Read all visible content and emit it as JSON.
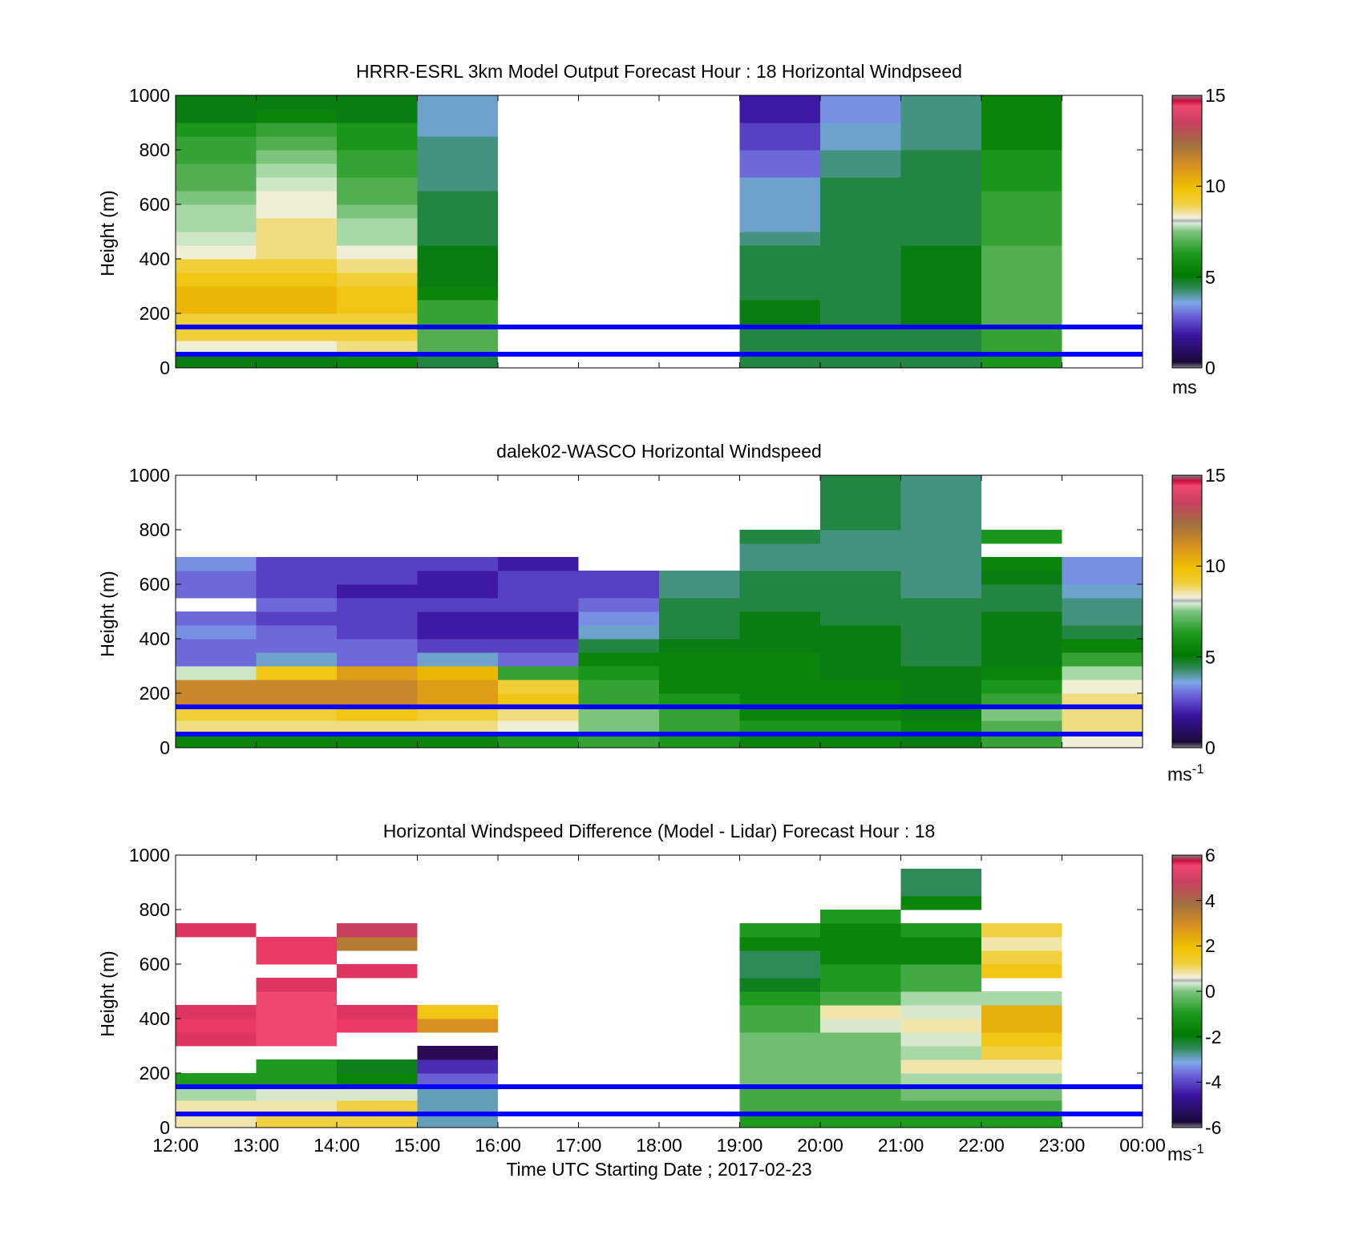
{
  "xaxis": {
    "ticks": [
      "12:00",
      "13:00",
      "14:00",
      "15:00",
      "16:00",
      "17:00",
      "18:00",
      "19:00",
      "20:00",
      "21:00",
      "22:00",
      "23:00",
      "00:00"
    ],
    "label": "Time UTC  Starting Date ; 2017-02-23",
    "start_hour": 12,
    "end_hour": 24
  },
  "panels": [
    {
      "title": "HRRR-ESRL 3km Model Output   Forecast Hour : 18 Horizontal Windpseed",
      "ylabel": "Height (m)",
      "yticks": [
        "0",
        "200",
        "400",
        "600",
        "800",
        "1000"
      ],
      "ylim": [
        0,
        1000
      ],
      "cbar": {
        "ticks": [
          "0",
          "5",
          "10",
          "15"
        ],
        "range": [
          0,
          15
        ],
        "unit": "ms",
        "unit_sup": ""
      }
    },
    {
      "title": "dalek02-WASCO  Horizontal Windspeed",
      "ylabel": "Height (m)",
      "yticks": [
        "0",
        "200",
        "400",
        "600",
        "800",
        "1000"
      ],
      "ylim": [
        0,
        1000
      ],
      "cbar": {
        "ticks": [
          "0",
          "5",
          "10",
          "15"
        ],
        "range": [
          0,
          15
        ],
        "unit": "ms",
        "unit_sup": "-1"
      }
    },
    {
      "title": "Horizontal Windspeed Difference (Model - Lidar) Forecast Hour : 18",
      "ylabel": "Height (m)",
      "yticks": [
        "0",
        "200",
        "400",
        "600",
        "800",
        "1000"
      ],
      "ylim": [
        0,
        1000
      ],
      "cbar": {
        "ticks": [
          "-6",
          "-4",
          "-2",
          "0",
          "2",
          "4",
          "6"
        ],
        "range": [
          -6,
          6
        ],
        "unit": "ms",
        "unit_sup": "-1"
      }
    }
  ],
  "reference_lines": {
    "heights_m": [
      50,
      150
    ],
    "color": "#0000ff"
  },
  "colors": {
    "colormap": [
      "#2b0a55",
      "#3a14a0",
      "#6b5fd8",
      "#7ea8e8",
      "#2f8a5a",
      "#007a00",
      "#1e9a1e",
      "#55b055",
      "#a8d8a8",
      "#f0f0e0",
      "#f0d040",
      "#f0c000",
      "#d89020",
      "#a07040",
      "#c84060",
      "#e83060",
      "#f04870"
    ],
    "reference_line": "#0000ff"
  },
  "chart_data": [
    {
      "type": "heatmap",
      "title": "HRRR-ESRL 3km Model Output   Forecast Hour : 18 Horizontal Windpseed",
      "ylabel": "Height (m)",
      "xlim_hours": [
        12,
        24
      ],
      "ylim": [
        0,
        1000
      ],
      "value_range": [
        0,
        15
      ],
      "colorbar_unit": "ms",
      "hours": [
        12,
        13,
        14,
        15,
        16,
        17,
        18,
        19,
        20,
        21,
        22,
        23
      ],
      "heights": [
        25,
        75,
        125,
        175,
        225,
        275,
        325,
        375,
        425,
        475,
        525,
        575,
        625,
        675,
        725,
        775,
        825,
        875,
        925,
        975
      ],
      "values": [
        [
          4.5,
          8.5,
          9.5,
          9.5,
          10.5,
          10.5,
          10,
          9.5,
          8.5,
          8,
          7.5,
          7.5,
          7,
          6.5,
          6.5,
          6,
          6,
          5.5,
          4.5,
          4.5
        ],
        [
          4.5,
          8.5,
          9.5,
          9.5,
          10.5,
          10.5,
          10,
          9.5,
          9,
          9,
          9,
          8.5,
          8.5,
          8,
          7.5,
          7,
          6.5,
          6,
          5,
          4.5
        ],
        [
          5,
          9,
          9.5,
          9.5,
          10,
          10,
          9.5,
          9,
          8.5,
          7.5,
          7.5,
          7,
          6.5,
          6.5,
          6,
          6,
          5.5,
          5.5,
          4.5,
          4.5
        ],
        [
          4,
          6.5,
          6.5,
          6,
          6,
          5,
          4.5,
          4.5,
          4.5,
          4,
          4,
          4,
          4,
          3.5,
          3.5,
          3.5,
          3.5,
          3,
          3,
          3
        ],
        [
          null,
          null,
          null,
          null,
          null,
          null,
          null,
          null,
          null,
          null,
          null,
          null,
          null,
          null,
          null,
          null,
          null,
          null,
          null,
          null
        ],
        [
          null,
          null,
          null,
          null,
          null,
          null,
          null,
          null,
          null,
          null,
          null,
          null,
          null,
          null,
          null,
          null,
          null,
          null,
          null,
          null
        ],
        [
          null,
          null,
          null,
          null,
          null,
          null,
          null,
          null,
          null,
          null,
          null,
          null,
          null,
          null,
          null,
          null,
          null,
          null,
          null,
          null
        ],
        [
          4,
          4,
          4,
          4.5,
          4.5,
          4,
          4,
          4,
          4,
          3.5,
          3,
          3,
          3,
          3,
          2,
          2,
          1.5,
          1.5,
          1,
          1
        ],
        [
          4,
          4,
          4,
          4,
          4,
          4,
          4,
          4,
          4,
          4,
          4,
          4,
          4,
          4,
          3.5,
          3.5,
          3,
          3,
          2.5,
          2.5
        ],
        [
          4,
          4,
          4,
          4.5,
          4.5,
          4.5,
          4.5,
          4.5,
          4.5,
          4,
          4,
          4,
          4,
          4,
          4,
          4,
          3.5,
          3.5,
          3.5,
          3.5
        ],
        [
          5.5,
          6,
          6,
          6.5,
          6.5,
          6.5,
          6.5,
          6.5,
          6.5,
          6,
          6,
          6,
          6,
          5.5,
          5.5,
          5.5,
          5,
          5,
          5,
          5
        ],
        [
          null,
          null,
          null,
          null,
          null,
          null,
          null,
          null,
          null,
          null,
          null,
          null,
          null,
          null,
          null,
          null,
          null,
          null,
          null,
          null
        ]
      ]
    },
    {
      "type": "heatmap",
      "title": "dalek02-WASCO  Horizontal Windspeed",
      "ylabel": "Height (m)",
      "xlim_hours": [
        12,
        24
      ],
      "ylim": [
        0,
        1000
      ],
      "value_range": [
        0,
        15
      ],
      "colorbar_unit": "ms-1",
      "hours": [
        12,
        13,
        14,
        15,
        16,
        17,
        18,
        19,
        20,
        21,
        22,
        23
      ],
      "heights": [
        25,
        75,
        125,
        175,
        225,
        275,
        325,
        375,
        425,
        475,
        525,
        575,
        625,
        675,
        725,
        775,
        825,
        875,
        925,
        975
      ],
      "values": [
        [
          5,
          9,
          9.5,
          11.5,
          11.5,
          8,
          2,
          2,
          2.5,
          2,
          null,
          2,
          2,
          2.5,
          null,
          null,
          null,
          null,
          null,
          null
        ],
        [
          5,
          9,
          9.5,
          11.5,
          11.5,
          10,
          3,
          2,
          2,
          1.5,
          2,
          1.5,
          1.5,
          1.5,
          null,
          null,
          null,
          null,
          null,
          null
        ],
        [
          5,
          9,
          10,
          11.5,
          11.5,
          11,
          2,
          2,
          1.5,
          1.5,
          1.5,
          1,
          1.5,
          1.5,
          null,
          null,
          null,
          null,
          null,
          null
        ],
        [
          5,
          9,
          9.5,
          11,
          11,
          10.5,
          3,
          1.5,
          1,
          1,
          1.5,
          1,
          1,
          1.5,
          null,
          null,
          null,
          null,
          null,
          null
        ],
        [
          5.5,
          8.5,
          9,
          10,
          9.5,
          6,
          2,
          1.5,
          1,
          1,
          1.5,
          1.5,
          1.5,
          1,
          null,
          null,
          null,
          null,
          null,
          null
        ],
        [
          6,
          7,
          7,
          6,
          6,
          5.5,
          5,
          4,
          3,
          2.5,
          2,
          1.5,
          1.5,
          null,
          null,
          null,
          null,
          null,
          null,
          null
        ],
        [
          5.5,
          6,
          6,
          5.5,
          5,
          5,
          5,
          4.5,
          4,
          4,
          4,
          3.5,
          3.5,
          null,
          null,
          null,
          null,
          null,
          null,
          null
        ],
        [
          5,
          5.5,
          5,
          5,
          5,
          5,
          5,
          4.5,
          4.5,
          4.5,
          4,
          4,
          4,
          3.5,
          3.5,
          4,
          null,
          null,
          null,
          null
        ],
        [
          5,
          5.5,
          5,
          5,
          5,
          4.5,
          4.5,
          4.5,
          4.5,
          4,
          4,
          4,
          4,
          3.5,
          3.5,
          3.5,
          4,
          4,
          4,
          4
        ],
        [
          4.5,
          5,
          4.5,
          4.5,
          4.5,
          4.5,
          4,
          4,
          4,
          4,
          4,
          3.5,
          3.5,
          3.5,
          3.5,
          3.5,
          3.5,
          3.5,
          3.5,
          3.5
        ],
        [
          6,
          6.5,
          7,
          6,
          5.5,
          5,
          4.5,
          4.5,
          4.5,
          4.5,
          4,
          4,
          4.5,
          5,
          null,
          5.5,
          null,
          null,
          null,
          null
        ],
        [
          8.5,
          9,
          9,
          9,
          8.5,
          7.5,
          6,
          5,
          4,
          3.5,
          3.5,
          3,
          2.5,
          2.5,
          null,
          null,
          null,
          null,
          null,
          null
        ]
      ]
    },
    {
      "type": "heatmap",
      "title": "Horizontal Windspeed Difference (Model - Lidar) Forecast Hour : 18",
      "xlabel": "Time UTC  Starting Date ; 2017-02-23",
      "ylabel": "Height (m)",
      "xlim_hours": [
        12,
        24
      ],
      "ylim": [
        0,
        1000
      ],
      "value_range": [
        -6,
        6
      ],
      "colorbar_unit": "ms-1",
      "hours": [
        12,
        13,
        14,
        15,
        16,
        17,
        18,
        19,
        20,
        21,
        22,
        23
      ],
      "heights": [
        25,
        75,
        125,
        175,
        225,
        275,
        325,
        375,
        425,
        475,
        525,
        575,
        625,
        675,
        725,
        775,
        825,
        875,
        925,
        975
      ],
      "values": [
        [
          1,
          1,
          0,
          -1.5,
          null,
          null,
          5,
          5.5,
          5,
          null,
          null,
          null,
          null,
          null,
          5,
          null,
          null,
          null,
          null,
          null
        ],
        [
          1.5,
          1,
          0.5,
          -1.5,
          -1.5,
          null,
          6.5,
          6.5,
          6.5,
          6.5,
          5,
          null,
          5.5,
          5.5,
          null,
          null,
          null,
          null,
          null,
          null
        ],
        [
          1.5,
          1.5,
          0.5,
          -2,
          -2.5,
          null,
          null,
          5.5,
          5,
          null,
          null,
          5,
          null,
          3.5,
          4.5,
          null,
          null,
          null,
          null,
          null
        ],
        [
          -3.5,
          -3.5,
          -3.5,
          -4.5,
          -5,
          -6,
          null,
          3,
          2,
          null,
          null,
          null,
          null,
          null,
          null,
          null,
          null,
          null,
          null,
          null
        ],
        [
          null,
          null,
          null,
          null,
          null,
          null,
          null,
          null,
          null,
          null,
          null,
          null,
          null,
          null,
          null,
          null,
          null,
          null,
          null,
          null
        ],
        [
          null,
          null,
          null,
          null,
          null,
          null,
          null,
          null,
          null,
          null,
          null,
          null,
          null,
          null,
          null,
          null,
          null,
          null,
          null,
          null
        ],
        [
          null,
          null,
          null,
          null,
          null,
          null,
          null,
          null,
          null,
          null,
          null,
          null,
          null,
          null,
          null,
          null,
          null,
          null,
          null,
          null
        ],
        [
          -1.5,
          -1,
          -1,
          -0.5,
          -0.5,
          -0.5,
          -0.5,
          -1,
          -1,
          -1.5,
          -2.5,
          -3,
          -3,
          -2,
          -1.5,
          null,
          null,
          null,
          null,
          null
        ],
        [
          -1.5,
          -1,
          -1,
          -0.5,
          -0.5,
          -0.5,
          -0.5,
          0.5,
          1,
          -1,
          -1.5,
          -1.5,
          -2,
          -2,
          -2,
          -1.5,
          null,
          null,
          null,
          null
        ],
        [
          -1.5,
          -1,
          -0.5,
          0,
          1,
          0,
          0.5,
          1,
          0.5,
          0,
          -1,
          -1,
          -2,
          -2,
          -1.5,
          null,
          -2,
          -3,
          -3,
          null
        ],
        [
          -1.5,
          -1,
          -0.5,
          0,
          1,
          1.5,
          2,
          2.5,
          2.5,
          0,
          null,
          2,
          1.5,
          1,
          1.5,
          null,
          null,
          null,
          null,
          null
        ],
        [
          null,
          null,
          null,
          null,
          null,
          null,
          null,
          null,
          null,
          null,
          null,
          null,
          null,
          null,
          null,
          null,
          null,
          null,
          null,
          null
        ]
      ]
    }
  ]
}
